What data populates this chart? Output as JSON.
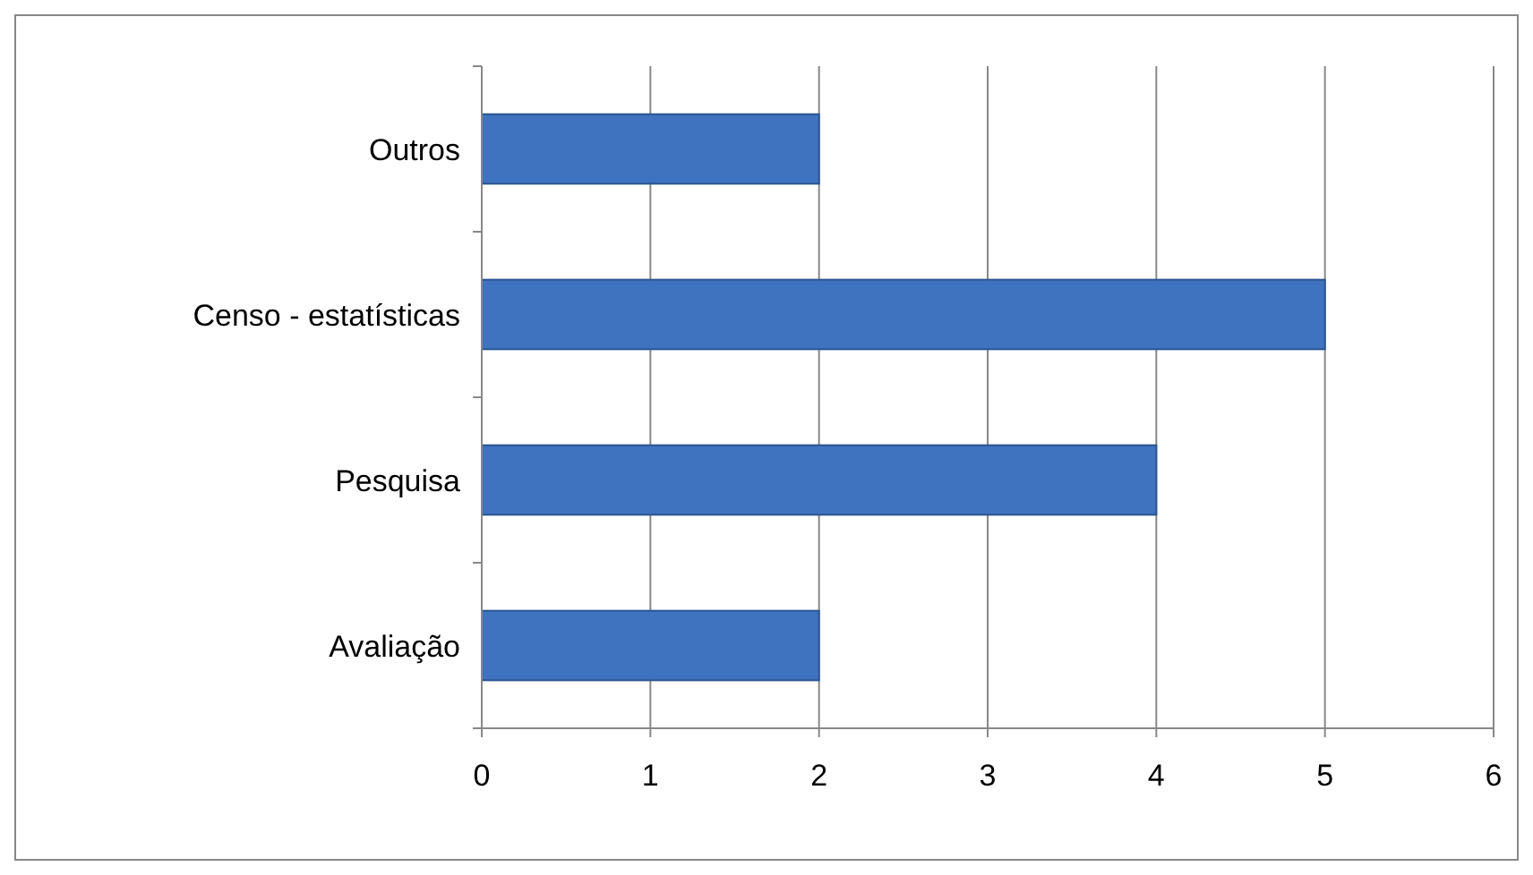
{
  "chart_data": {
    "type": "bar",
    "orientation": "horizontal",
    "categories": [
      "Outros",
      "Censo - estatísticas",
      "Pesquisa",
      "Avaliação"
    ],
    "values": [
      2,
      5,
      4,
      2
    ],
    "color": "#3f73c0",
    "xlim": [
      0,
      6
    ],
    "xticks": [
      0,
      1,
      2,
      3,
      4,
      5,
      6
    ],
    "grid": "x"
  }
}
